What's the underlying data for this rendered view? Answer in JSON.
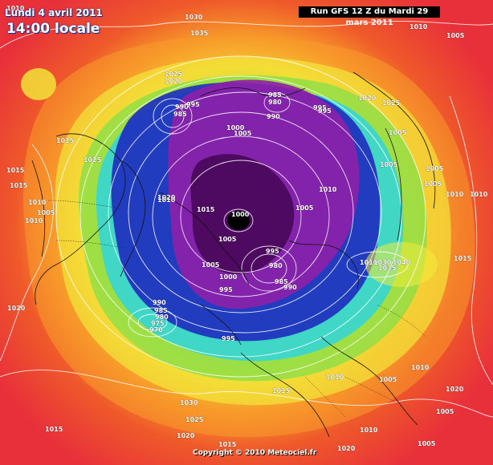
{
  "header": {
    "date": "Lundi 4 avril 2011",
    "time": "14:00 locale",
    "run": "Run GFS 12 Z du Mardi 29 mars 2011"
  },
  "footer": {
    "copyright": "Copyright © 2010 Meteociel.fr"
  },
  "isobar_labels": [
    "1010",
    "1030",
    "1035",
    "1005",
    "1010",
    "1025",
    "1020",
    "990",
    "985",
    "995",
    "985",
    "980",
    "995",
    "990",
    "995",
    "1000",
    "1005",
    "1020",
    "1025",
    "1015",
    "1015",
    "1025",
    "1015",
    "1010",
    "1005",
    "1010",
    "1000",
    "1015",
    "1010",
    "1005",
    "1020",
    "1010",
    "1005",
    "1005",
    "1010",
    "1010",
    "1015",
    "1005",
    "1005",
    "1000",
    "1005",
    "1005",
    "995",
    "980",
    "985",
    "990",
    "995",
    "1010",
    "1030",
    "1040",
    "1035",
    "1020",
    "990",
    "985",
    "980",
    "975",
    "970",
    "995",
    "1010",
    "1010",
    "1015",
    "1005",
    "1020",
    "1005",
    "1030",
    "1025",
    "1020",
    "1015",
    "1015",
    "1005",
    "1010",
    "1020"
  ],
  "colors": {
    "low_core": "#4a0a5c",
    "low_mid": "#8e1fa8",
    "low_outer": "#1f2fbf",
    "cyan_band": "#2ad4e6",
    "green_band": "#7ee04a",
    "yellow_band": "#f2ec3a",
    "orange_band": "#f79a2a",
    "high_outer": "#e8303a"
  }
}
